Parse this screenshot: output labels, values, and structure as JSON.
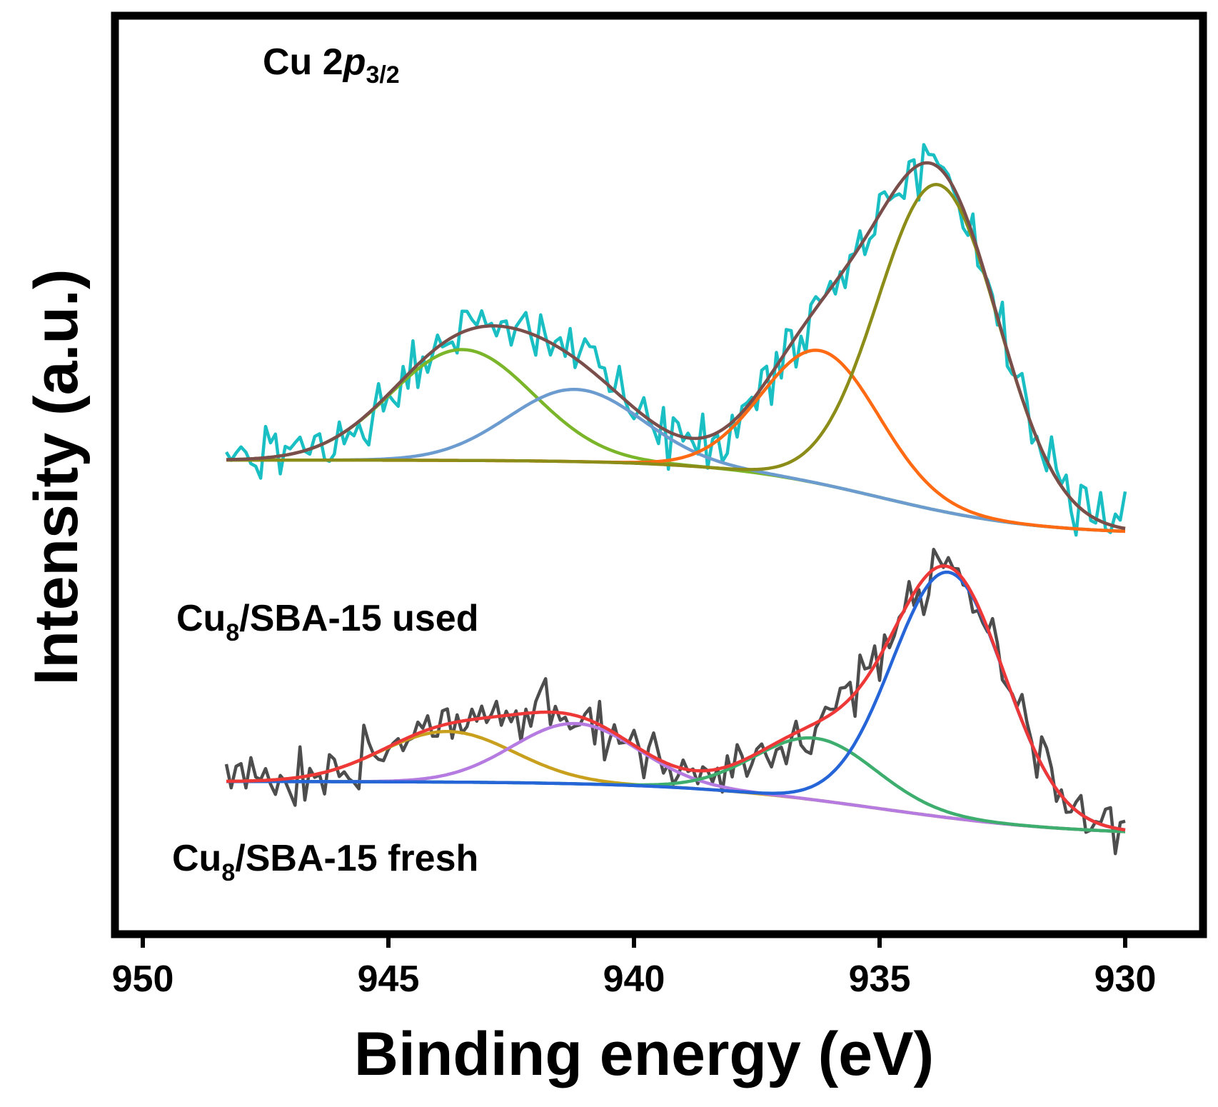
{
  "chart_data": {
    "type": "line",
    "title": "",
    "panel_label": {
      "main": "Cu 2",
      "italic": "p",
      "sub": "3/2"
    },
    "xlabel": "Binding energy (eV)",
    "ylabel": "Intensity (a.u.)",
    "xlim": [
      950,
      928.2
    ],
    "x_reversed": true,
    "x_ticks": [
      950,
      945,
      940,
      935,
      930
    ],
    "y_ticks": [],
    "ylim": [
      0,
      1.2
    ],
    "grid": false,
    "legend": null,
    "spectra": [
      {
        "name": "Cu8/SBA-15 used",
        "label_main": "Cu",
        "label_sub": "8",
        "label_rest": "/SBA-15 used",
        "x_range": [
          948.3,
          930.0
        ],
        "baseline": {
          "left": 0.62,
          "right": 0.52,
          "transition_center": 935.0,
          "transition_width": 1.6
        },
        "noise": 0.026,
        "raw_color": "#1ABFC4",
        "envelope_color": "#7A4E4B",
        "components": [
          {
            "name": "peak 943.5 eV",
            "center": 943.5,
            "fwhm": 3.4,
            "height": 0.149,
            "color": "#7AB52A"
          },
          {
            "name": "peak 941.2 eV",
            "center": 941.2,
            "fwhm": 3.2,
            "height": 0.097,
            "color": "#6C9CCF"
          },
          {
            "name": "peak 936.2 eV",
            "center": 936.2,
            "fwhm": 2.8,
            "height": 0.179,
            "color": "#FF6A12"
          },
          {
            "name": "peak 933.8 eV",
            "center": 933.8,
            "fwhm": 2.9,
            "height": 0.438,
            "color": "#8C8C19"
          }
        ]
      },
      {
        "name": "Cu8/SBA-15 fresh",
        "label_main": "Cu",
        "label_sub": "8",
        "label_rest": "/SBA-15 fresh",
        "x_range": [
          948.3,
          930.0
        ],
        "baseline": {
          "left": 0.188,
          "right": 0.115,
          "transition_center": 935.0,
          "transition_width": 2.0
        },
        "noise": 0.024,
        "raw_color": "#4D4D4D",
        "envelope_color": "#EE3838",
        "components": [
          {
            "name": "peak 943.8 eV",
            "center": 943.8,
            "fwhm": 3.2,
            "height": 0.068,
            "color": "#C9A01E"
          },
          {
            "name": "peak 941.2 eV",
            "center": 941.2,
            "fwhm": 3.0,
            "height": 0.081,
            "color": "#B57BE0"
          },
          {
            "name": "peak 936.3 eV",
            "center": 936.3,
            "fwhm": 2.9,
            "height": 0.083,
            "color": "#3DAE6E"
          },
          {
            "name": "peak 933.6 eV",
            "center": 933.6,
            "fwhm": 2.7,
            "height": 0.33,
            "color": "#2565D8"
          }
        ]
      }
    ]
  }
}
